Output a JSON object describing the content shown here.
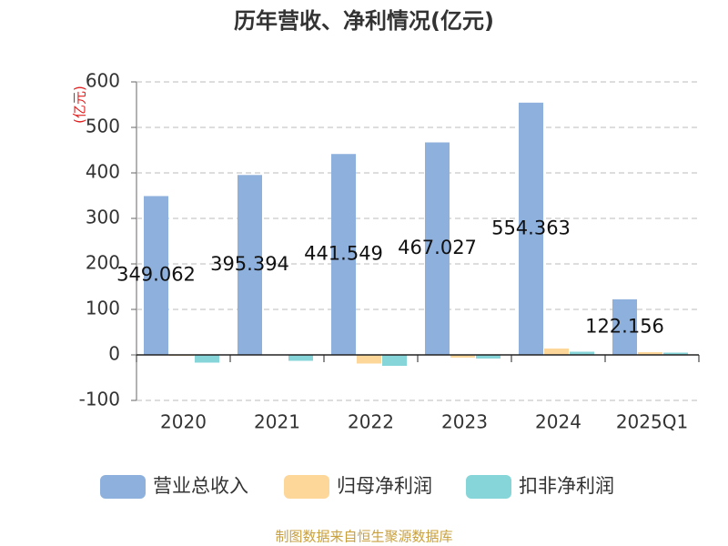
{
  "chart_data": {
    "type": "bar",
    "title": "历年营收、净利情况(亿元)",
    "y_axis_label": "(亿元)",
    "categories": [
      "2020",
      "2021",
      "2022",
      "2023",
      "2024",
      "2025Q1"
    ],
    "series": [
      {
        "name": "营业总收入",
        "color": "#8eb0dc",
        "values": [
          349.062,
          395.394,
          441.549,
          467.027,
          554.363,
          122.156
        ],
        "show_labels": true
      },
      {
        "name": "归母净利润",
        "color": "#fdd69a",
        "values": [
          -2,
          1,
          -19,
          -6,
          14,
          6
        ]
      },
      {
        "name": "扣非净利润",
        "color": "#86d5d8",
        "values": [
          -17,
          -13,
          -24,
          -8,
          7,
          5
        ]
      }
    ],
    "ylim": [
      -100,
      600
    ],
    "yticks": [
      -100,
      0,
      100,
      200,
      300,
      400,
      500,
      600
    ],
    "grid": true,
    "legend": "bottom",
    "source": "制图数据来自恒生聚源数据库"
  }
}
